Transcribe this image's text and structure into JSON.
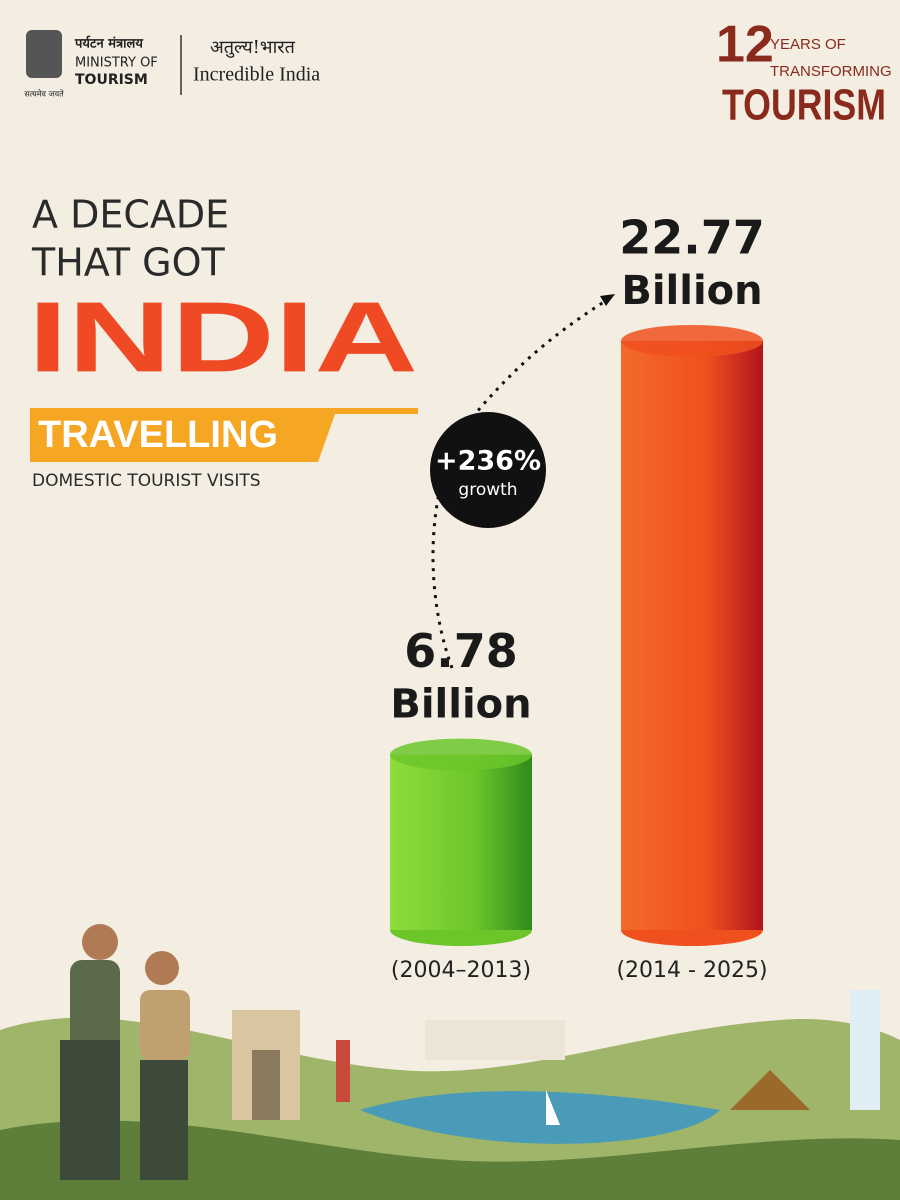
{
  "header": {
    "ministry_hindi": "पर्यटन मंत्रालय",
    "ministry_line1": "MINISTRY OF",
    "ministry_line2": "TOURISM",
    "motto": "सत्यमेव जयते",
    "brand_hindi": "अतुल्य!भारत",
    "brand": "Incredible India",
    "badge_number": "12",
    "badge_line1": "YEARS OF",
    "badge_line2": "TRANSFORMING",
    "badge_line3": "TOURISM"
  },
  "chart_data": {
    "type": "cylinder",
    "title_line1": "A DECADE",
    "title_line2": "THAT GOT",
    "title_line3": "INDIA",
    "title_line4": "TRAVELLING",
    "subtitle": "DOMESTIC TOURIST VISITS",
    "categories": [
      "(2004–2013)",
      "(2014 - 2025)"
    ],
    "values": [
      6.78,
      22.77
    ],
    "unit": "Billion",
    "colors": [
      "#6cc62a",
      "#f0501e"
    ],
    "ylim": [
      0,
      23
    ],
    "annotation": "+236%",
    "annotation_sub": "growth"
  }
}
